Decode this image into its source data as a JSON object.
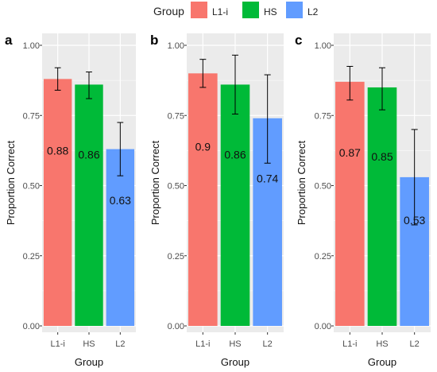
{
  "legend": {
    "title": "Group",
    "items": [
      {
        "label": "L1-i",
        "color": "#F8766D"
      },
      {
        "label": "HS",
        "color": "#00BA38"
      },
      {
        "label": "L2",
        "color": "#619CFF"
      }
    ],
    "placement": "top"
  },
  "chart_data": [
    {
      "type": "bar",
      "panel_label": "a",
      "categories": [
        "L1-i",
        "HS",
        "L2"
      ],
      "values": [
        0.88,
        0.86,
        0.63
      ],
      "value_labels": [
        "0.88",
        "0.86",
        "0.63"
      ],
      "error_bars": [
        [
          0.84,
          0.92
        ],
        [
          0.81,
          0.905
        ],
        [
          0.535,
          0.725
        ]
      ],
      "xlabel": "Group",
      "ylabel": "Proportion Correct",
      "ylim": [
        0,
        1
      ],
      "yticks": [
        "0.00",
        "0.25",
        "0.50",
        "0.75",
        "1.00"
      ],
      "grid": true
    },
    {
      "type": "bar",
      "panel_label": "b",
      "categories": [
        "L1-i",
        "HS",
        "L2"
      ],
      "values": [
        0.9,
        0.86,
        0.74
      ],
      "value_labels": [
        "0.9",
        "0.86",
        "0.74"
      ],
      "error_bars": [
        [
          0.85,
          0.95
        ],
        [
          0.755,
          0.965
        ],
        [
          0.58,
          0.895
        ]
      ],
      "xlabel": "Group",
      "ylabel": "Proportion Correct",
      "ylim": [
        0,
        1
      ],
      "yticks": [
        "0.00",
        "0.25",
        "0.50",
        "0.75",
        "1.00"
      ],
      "grid": true
    },
    {
      "type": "bar",
      "panel_label": "c",
      "categories": [
        "L1-i",
        "HS",
        "L2"
      ],
      "values": [
        0.87,
        0.85,
        0.53
      ],
      "value_labels": [
        "0.87",
        "0.85",
        "0.53"
      ],
      "error_bars": [
        [
          0.805,
          0.925
        ],
        [
          0.77,
          0.92
        ],
        [
          0.36,
          0.7
        ]
      ],
      "xlabel": "Group",
      "ylabel": "Proportion Correct",
      "ylim": [
        0,
        1
      ],
      "yticks": [
        "0.00",
        "0.25",
        "0.50",
        "0.75",
        "1.00"
      ],
      "grid": true
    }
  ]
}
